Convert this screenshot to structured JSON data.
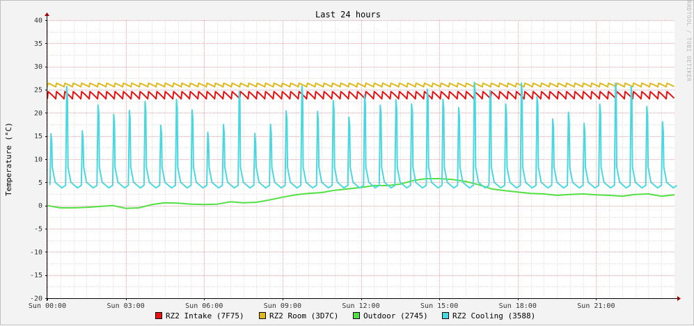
{
  "chart_data": {
    "type": "line",
    "title": "Last 24 hours",
    "xlabel": "",
    "ylabel": "Temperature (°C)",
    "watermark": "RRDTOOL / TOBI OETIKER",
    "xlim": [
      0,
      24
    ],
    "ylim": [
      -20,
      40
    ],
    "y_ticks": [
      -20,
      -15,
      -10,
      -5,
      0,
      5,
      10,
      15,
      20,
      25,
      30,
      35,
      40
    ],
    "x_ticks": [
      {
        "hour": 0,
        "label": "Sun 00:00"
      },
      {
        "hour": 3,
        "label": "Sun 03:00"
      },
      {
        "hour": 6,
        "label": "Sun 06:00"
      },
      {
        "hour": 9,
        "label": "Sun 09:00"
      },
      {
        "hour": 12,
        "label": "Sun 12:00"
      },
      {
        "hour": 15,
        "label": "Sun 15:00"
      },
      {
        "hour": 18,
        "label": "Sun 18:00"
      },
      {
        "hour": 21,
        "label": "Sun 21:00"
      }
    ],
    "grid": true,
    "legend_position": "bottom",
    "series": [
      {
        "name": "RZ2 Intake (7F75)",
        "color": "#e81010",
        "style": "oscillating",
        "period_hours": 0.32,
        "shape": "saw",
        "low": 23.0,
        "high": 24.6
      },
      {
        "name": "RZ2 Room (3D7C)",
        "color": "#e0b81c",
        "style": "oscillating",
        "period_hours": 0.32,
        "shape": "saw",
        "low": 25.6,
        "high": 26.4
      },
      {
        "name": "Outdoor (2745)",
        "color": "#50e040",
        "style": "smooth",
        "x": [
          0,
          0.5,
          1,
          1.5,
          2,
          2.5,
          3,
          3.5,
          4,
          4.5,
          5,
          5.5,
          6,
          6.5,
          7,
          7.5,
          8,
          8.5,
          9,
          9.5,
          10,
          10.5,
          11,
          11.5,
          12,
          12.5,
          13,
          13.5,
          14,
          14.5,
          15,
          15.5,
          16,
          16.5,
          17,
          17.5,
          18,
          18.5,
          19,
          19.5,
          20,
          20.5,
          21,
          21.5,
          22,
          22.5,
          23,
          23.5,
          24
        ],
        "values": [
          0.0,
          -0.5,
          -0.5,
          -0.4,
          -0.2,
          0.0,
          -0.6,
          -0.5,
          0.2,
          0.6,
          0.5,
          0.3,
          0.2,
          0.3,
          0.8,
          0.6,
          0.7,
          1.2,
          1.8,
          2.3,
          2.6,
          2.8,
          3.3,
          3.6,
          3.9,
          4.3,
          4.3,
          4.6,
          5.4,
          5.8,
          5.8,
          5.6,
          5.2,
          4.5,
          3.6,
          3.2,
          2.9,
          2.6,
          2.5,
          2.2,
          2.4,
          2.5,
          2.3,
          2.2,
          2.0,
          2.4,
          2.5,
          2.0,
          2.3
        ]
      },
      {
        "name": "RZ2 Cooling (3588)",
        "color": "#48d8e0",
        "style": "spikes",
        "period_hours": 0.6,
        "base": 3.8,
        "spike_min": 15.5,
        "spike_max": 26.6
      }
    ]
  }
}
